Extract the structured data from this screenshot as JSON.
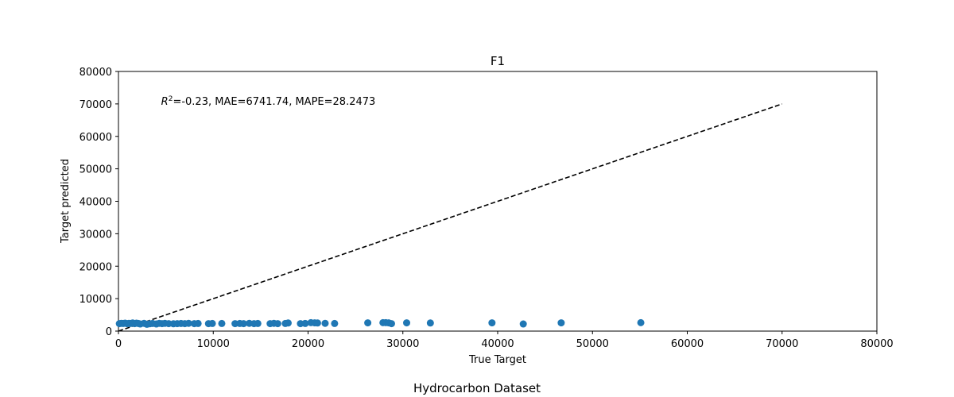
{
  "figure": {
    "caption": "Hydrocarbon Dataset"
  },
  "chart_data": {
    "type": "scatter",
    "title": "F1",
    "xlabel": "True Target",
    "ylabel": "Target predicted",
    "xlim": [
      0,
      80000
    ],
    "ylim": [
      0,
      80000
    ],
    "xticks": [
      0,
      10000,
      20000,
      30000,
      40000,
      50000,
      60000,
      70000,
      80000
    ],
    "yticks": [
      0,
      10000,
      20000,
      30000,
      40000,
      50000,
      60000,
      70000,
      80000
    ],
    "grid": false,
    "annotation": {
      "r2_symbol": "R",
      "r2_superscript": "2",
      "text": "=-0.23, MAE=6741.74, MAPE=28.2473",
      "x": 4500,
      "y": 71000
    },
    "reference_line": {
      "style": "dashed",
      "color": "#000000",
      "x": [
        0,
        70000
      ],
      "y": [
        0,
        70000
      ]
    },
    "series": [
      {
        "name": "predictions",
        "color": "#1f77b4",
        "points": [
          [
            100,
            2300
          ],
          [
            300,
            2400
          ],
          [
            500,
            2350
          ],
          [
            700,
            2450
          ],
          [
            900,
            2300
          ],
          [
            1100,
            2400
          ],
          [
            1300,
            2350
          ],
          [
            1500,
            2500
          ],
          [
            1700,
            2300
          ],
          [
            1900,
            2450
          ],
          [
            2100,
            2350
          ],
          [
            2300,
            2200
          ],
          [
            2700,
            2400
          ],
          [
            3000,
            2100
          ],
          [
            3300,
            2250
          ],
          [
            3600,
            2350
          ],
          [
            4000,
            2200
          ],
          [
            4300,
            2400
          ],
          [
            4600,
            2300
          ],
          [
            4900,
            2400
          ],
          [
            5300,
            2300
          ],
          [
            5800,
            2250
          ],
          [
            6200,
            2300
          ],
          [
            6600,
            2350
          ],
          [
            7000,
            2300
          ],
          [
            7400,
            2400
          ],
          [
            8000,
            2300
          ],
          [
            8400,
            2350
          ],
          [
            9500,
            2300
          ],
          [
            9900,
            2350
          ],
          [
            10900,
            2350
          ],
          [
            12300,
            2300
          ],
          [
            12800,
            2350
          ],
          [
            13200,
            2300
          ],
          [
            13800,
            2400
          ],
          [
            14300,
            2300
          ],
          [
            14700,
            2350
          ],
          [
            16000,
            2300
          ],
          [
            16400,
            2400
          ],
          [
            16800,
            2300
          ],
          [
            17600,
            2350
          ],
          [
            17900,
            2500
          ],
          [
            19200,
            2300
          ],
          [
            19700,
            2350
          ],
          [
            20300,
            2600
          ],
          [
            20700,
            2550
          ],
          [
            21000,
            2500
          ],
          [
            21800,
            2400
          ],
          [
            22800,
            2350
          ],
          [
            26300,
            2550
          ],
          [
            27900,
            2600
          ],
          [
            28200,
            2600
          ],
          [
            28500,
            2550
          ],
          [
            28800,
            2300
          ],
          [
            30400,
            2550
          ],
          [
            32900,
            2500
          ],
          [
            39400,
            2550
          ],
          [
            42700,
            2200
          ],
          [
            46700,
            2550
          ],
          [
            55100,
            2600
          ]
        ]
      }
    ]
  }
}
